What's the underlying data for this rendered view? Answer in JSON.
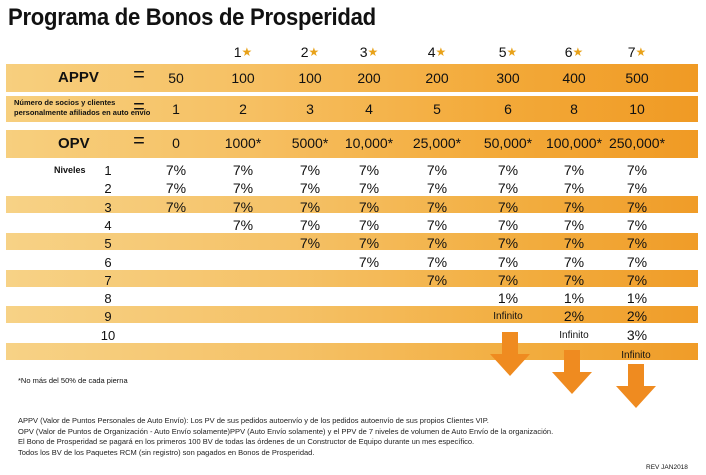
{
  "title": "Programa de Bonos de Prosperidad",
  "rank_headers": [
    "1",
    "2",
    "3",
    "4",
    "5",
    "6",
    "7"
  ],
  "appv": {
    "label": "APPV",
    "eq": "=",
    "values": [
      "50",
      "100",
      "100",
      "200",
      "200",
      "300",
      "400",
      "500"
    ]
  },
  "socios": {
    "label_line1": "Número de socios y clientes",
    "label_line2": "personalmente afiliados en auto envío",
    "eq": "=",
    "values": [
      "1",
      "2",
      "3",
      "4",
      "5",
      "6",
      "8",
      "10"
    ]
  },
  "opv": {
    "label": "OPV",
    "eq": "=",
    "values": [
      "0",
      "1000*",
      "5000*",
      "10,000*",
      "25,000*",
      "50,000*",
      "100,000*",
      "250,000*"
    ]
  },
  "niveles_label": "Niveles",
  "levels": [
    {
      "n": "1",
      "cells": [
        "7%",
        "7%",
        "7%",
        "7%",
        "7%",
        "7%",
        "7%",
        "7%"
      ]
    },
    {
      "n": "2",
      "cells": [
        "7%",
        "7%",
        "7%",
        "7%",
        "7%",
        "7%",
        "7%",
        "7%"
      ]
    },
    {
      "n": "3",
      "cells": [
        "7%",
        "7%",
        "7%",
        "7%",
        "7%",
        "7%",
        "7%",
        "7%"
      ]
    },
    {
      "n": "4",
      "cells": [
        "",
        "7%",
        "7%",
        "7%",
        "7%",
        "7%",
        "7%",
        "7%"
      ]
    },
    {
      "n": "5",
      "cells": [
        "",
        "",
        "7%",
        "7%",
        "7%",
        "7%",
        "7%",
        "7%"
      ]
    },
    {
      "n": "6",
      "cells": [
        "",
        "",
        "",
        "7%",
        "7%",
        "7%",
        "7%",
        "7%"
      ]
    },
    {
      "n": "7",
      "cells": [
        "",
        "",
        "",
        "",
        "7%",
        "7%",
        "7%",
        "7%"
      ]
    },
    {
      "n": "8",
      "cells": [
        "",
        "",
        "",
        "",
        "",
        "1%",
        "1%",
        "1%"
      ]
    },
    {
      "n": "9",
      "cells": [
        "",
        "",
        "",
        "",
        "",
        "Infinito",
        "2%",
        "2%"
      ]
    },
    {
      "n": "10",
      "cells": [
        "",
        "",
        "",
        "",
        "",
        "",
        "Infinito",
        "3%"
      ]
    }
  ],
  "infinito_label": "Infinito",
  "footnote": "*No más del 50% de cada pierna",
  "notes": [
    "APPV (Valor de Puntos Personales de Auto Envío): Los PV de sus pedidos autoenvío y de los pedidos autoenvío de sus propios Clientes VIP.",
    "OPV (Valor de Puntos de Organización - Auto Envío solamente)PPV (Auto Envío solamente) y el PPV de 7 niveles de volumen de Auto Envío de la organización.",
    "El Bono de Prosperidad se pagará en los primeros 100 BV de todas las órdenes de un Constructor de Equipo durante un mes específico.",
    "Todos los BV de los Paquetes RCM (sin registro) son pagados en Bonos de Prosperidad."
  ],
  "revision": "REV JAN2018",
  "colors": {
    "orange_dark": "#f09a24",
    "orange_light": "#f7d286",
    "arrow": "#ef8b20",
    "star": "#e8a21a"
  }
}
